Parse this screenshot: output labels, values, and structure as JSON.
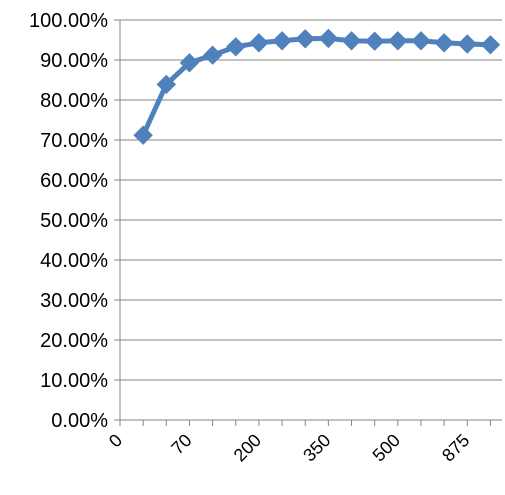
{
  "chart_data": {
    "type": "line",
    "title": "",
    "xlabel": "",
    "ylabel": "",
    "x_tick_labels": [
      "0",
      "70",
      "200",
      "350",
      "500",
      "875"
    ],
    "y_tick_labels": [
      "0.00%",
      "10.00%",
      "20.00%",
      "30.00%",
      "40.00%",
      "50.00%",
      "60.00%",
      "70.00%",
      "80.00%",
      "90.00%",
      "100.00%"
    ],
    "ylim": [
      0,
      100
    ],
    "y_unit": "percent",
    "grid": "horizontal",
    "legend": "none",
    "series": [
      {
        "values": [
          71.2,
          83.9,
          89.3,
          91.2,
          93.3,
          94.3,
          94.8,
          95.3,
          95.4,
          94.8,
          94.7,
          94.8,
          94.8,
          94.3,
          94.0,
          93.8
        ],
        "color": "#4F81BD",
        "marker": "diamond"
      }
    ]
  }
}
